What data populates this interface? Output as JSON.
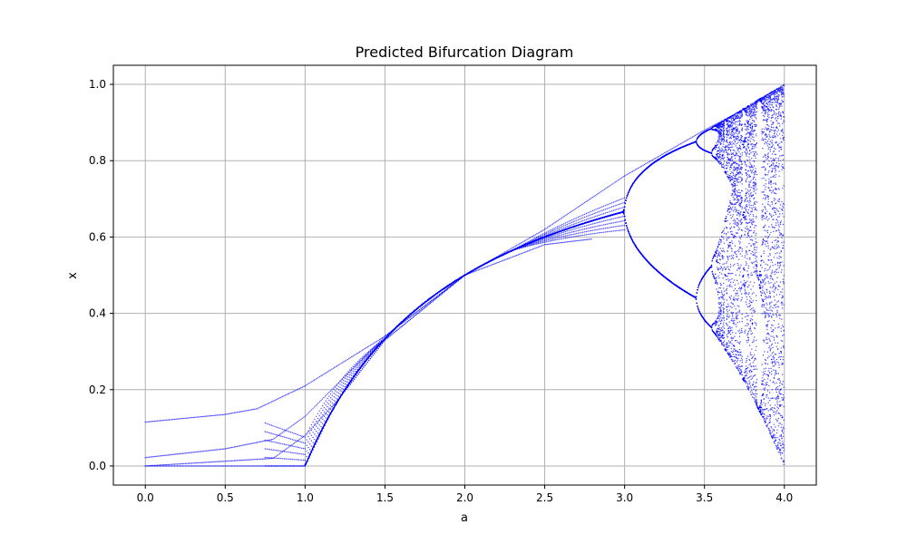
{
  "chart_data": {
    "type": "scatter",
    "title": "Predicted Bifurcation Diagram",
    "xlabel": "a",
    "ylabel": "x",
    "xlim": [
      -0.2,
      4.2
    ],
    "ylim": [
      -0.05,
      1.05
    ],
    "xticks": [
      "0.0",
      "0.5",
      "1.0",
      "1.5",
      "2.0",
      "2.5",
      "3.0",
      "3.5",
      "4.0"
    ],
    "yticks": [
      "0.0",
      "0.2",
      "0.4",
      "0.6",
      "0.8",
      "1.0"
    ],
    "grid": true,
    "point_color": "#0000ff",
    "series": [
      {
        "values_note_a": "a",
        "x": [
          0.0,
          0.5,
          0.7,
          1.0,
          1.5,
          2.0,
          2.5,
          3.0,
          3.5,
          4.0
        ],
        "y": [
          0.115,
          0.135,
          0.15,
          0.21,
          0.34,
          0.5,
          0.62,
          0.76,
          0.88,
          0.99
        ]
      },
      {
        "x": [
          0.0,
          0.5,
          0.8,
          1.0,
          1.5,
          2.0,
          2.5,
          2.8
        ],
        "y": [
          0.022,
          0.045,
          0.07,
          0.13,
          0.34,
          0.5,
          0.58,
          0.595
        ]
      },
      {
        "x": [
          0.0,
          0.8,
          1.0,
          1.2,
          1.5,
          2.0
        ],
        "y": [
          0.0,
          0.02,
          0.08,
          0.17,
          0.33,
          0.5
        ]
      },
      {
        "x": [
          0.0,
          1.0,
          1.2,
          1.5,
          2.0
        ],
        "y": [
          0.0,
          0.0,
          0.17,
          0.33,
          0.5
        ]
      }
    ]
  }
}
